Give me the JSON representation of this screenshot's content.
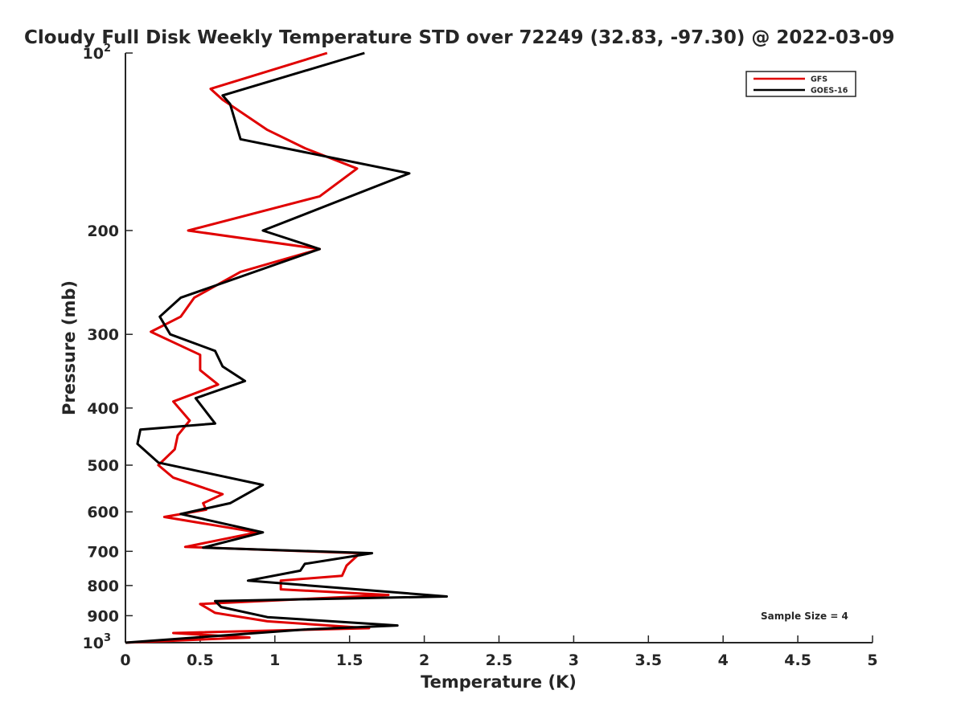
{
  "chart_data": {
    "type": "line",
    "title": "Cloudy Full Disk Weekly Temperature STD over 72249 (32.83, -97.30) @ 2022-03-09",
    "xlabel": "Temperature (K)",
    "ylabel": "Pressure (mb)",
    "xlim": [
      0,
      5
    ],
    "ylim": [
      100,
      1000
    ],
    "y_scale": "log",
    "y_reversed": true,
    "grid": false,
    "legend_position": "top-right",
    "x_ticks": [
      "0",
      "0.5",
      "1",
      "1.5",
      "2",
      "2.5",
      "3",
      "3.5",
      "4",
      "4.5",
      "5"
    ],
    "y_ticks": [
      {
        "value": 100,
        "label": "10",
        "sup": "2"
      },
      {
        "value": 200,
        "label": "200",
        "sup": ""
      },
      {
        "value": 300,
        "label": "300",
        "sup": ""
      },
      {
        "value": 400,
        "label": "400",
        "sup": ""
      },
      {
        "value": 500,
        "label": "500",
        "sup": ""
      },
      {
        "value": 600,
        "label": "600",
        "sup": ""
      },
      {
        "value": 700,
        "label": "700",
        "sup": ""
      },
      {
        "value": 800,
        "label": "800",
        "sup": ""
      },
      {
        "value": 900,
        "label": "900",
        "sup": ""
      },
      {
        "value": 1000,
        "label": "10",
        "sup": "3"
      }
    ],
    "annotation": "Sample Size = 4",
    "series": [
      {
        "name": "GFS",
        "color": "#e00000",
        "points": [
          [
            1.35,
            100
          ],
          [
            0.57,
            115
          ],
          [
            0.65,
            120
          ],
          [
            0.95,
            135
          ],
          [
            1.2,
            145
          ],
          [
            1.55,
            157
          ],
          [
            1.3,
            175
          ],
          [
            0.42,
            200
          ],
          [
            1.3,
            215
          ],
          [
            0.77,
            235
          ],
          [
            0.46,
            260
          ],
          [
            0.37,
            280
          ],
          [
            0.17,
            297
          ],
          [
            0.5,
            325
          ],
          [
            0.5,
            345
          ],
          [
            0.62,
            365
          ],
          [
            0.32,
            390
          ],
          [
            0.43,
            420
          ],
          [
            0.35,
            445
          ],
          [
            0.33,
            470
          ],
          [
            0.22,
            500
          ],
          [
            0.32,
            525
          ],
          [
            0.65,
            560
          ],
          [
            0.52,
            580
          ],
          [
            0.54,
            595
          ],
          [
            0.26,
            612
          ],
          [
            0.88,
            650
          ],
          [
            0.4,
            688
          ],
          [
            1.57,
            705
          ],
          [
            1.48,
            740
          ],
          [
            1.45,
            770
          ],
          [
            1.04,
            785
          ],
          [
            1.04,
            812
          ],
          [
            1.76,
            830
          ],
          [
            0.5,
            860
          ],
          [
            0.6,
            890
          ],
          [
            0.95,
            920
          ],
          [
            1.63,
            945
          ],
          [
            0.32,
            963
          ],
          [
            0.83,
            980
          ],
          [
            0,
            1000
          ]
        ]
      },
      {
        "name": "GOES-16",
        "color": "#000000",
        "points": [
          [
            1.6,
            100
          ],
          [
            0.65,
            118
          ],
          [
            0.7,
            122
          ],
          [
            0.77,
            140
          ],
          [
            1.9,
            160
          ],
          [
            0.92,
            200
          ],
          [
            1.3,
            215
          ],
          [
            0.37,
            260
          ],
          [
            0.23,
            280
          ],
          [
            0.3,
            300
          ],
          [
            0.6,
            320
          ],
          [
            0.65,
            340
          ],
          [
            0.8,
            360
          ],
          [
            0.47,
            385
          ],
          [
            0.6,
            425
          ],
          [
            0.1,
            435
          ],
          [
            0.08,
            460
          ],
          [
            0.22,
            495
          ],
          [
            0.92,
            540
          ],
          [
            0.7,
            580
          ],
          [
            0.37,
            605
          ],
          [
            0.92,
            650
          ],
          [
            0.52,
            690
          ],
          [
            1.65,
            705
          ],
          [
            1.2,
            735
          ],
          [
            1.17,
            755
          ],
          [
            0.82,
            785
          ],
          [
            2.15,
            835
          ],
          [
            0.6,
            850
          ],
          [
            0.64,
            870
          ],
          [
            0.95,
            905
          ],
          [
            1.82,
            935
          ],
          [
            1.2,
            950
          ],
          [
            0,
            1000
          ]
        ]
      }
    ]
  }
}
